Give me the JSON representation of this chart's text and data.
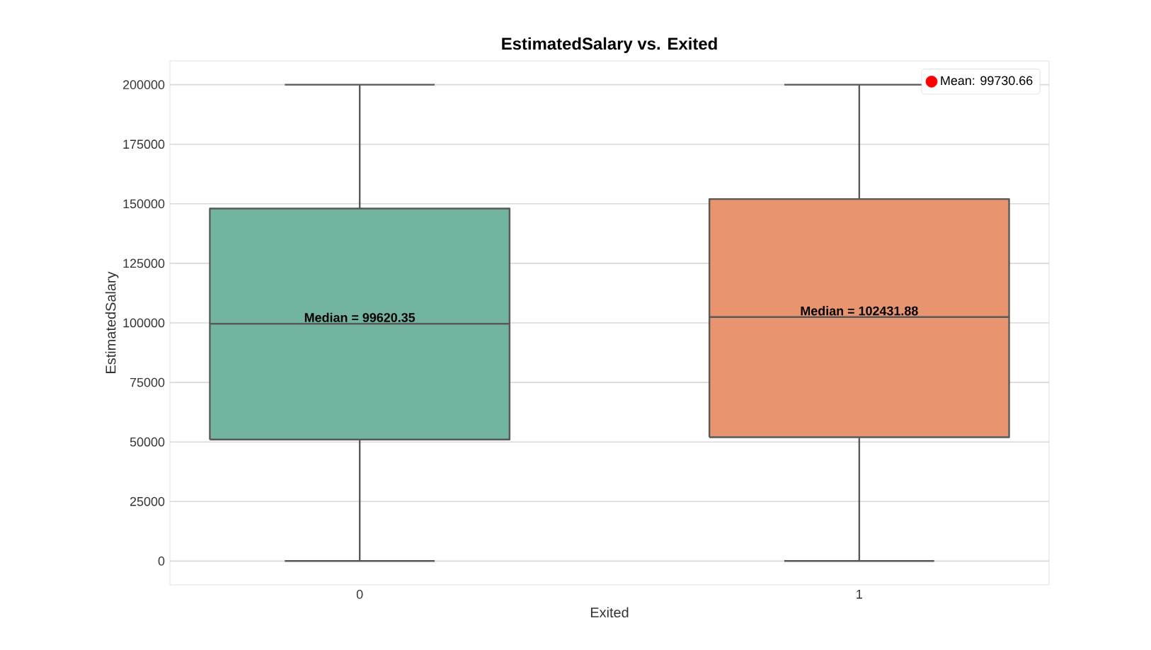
{
  "chart_data": {
    "type": "box",
    "title": "EstimatedSalary vs. Exited",
    "xlabel": "Exited",
    "ylabel": "EstimatedSalary",
    "categories": [
      "0",
      "1"
    ],
    "colors": [
      "#73b4a0",
      "#e8956f"
    ],
    "boxes": [
      {
        "low": 12,
        "q1": 51000,
        "median": 99620.35,
        "q3": 148000,
        "high": 200000
      },
      {
        "low": 12,
        "q1": 52000,
        "median": 102431.88,
        "q3": 152000,
        "high": 200000
      }
    ],
    "series": [
      {
        "name": "Mean: 99730.66",
        "type": "scatter",
        "color": "#ff0000",
        "x": [
          "0",
          "1"
        ],
        "values": [
          null,
          null
        ]
      }
    ],
    "ylim": [
      -10000,
      210000
    ],
    "yticks": [
      0,
      25000,
      50000,
      75000,
      100000,
      125000,
      150000,
      175000,
      200000
    ],
    "grid": "y",
    "legend": "top right",
    "annotations": [
      {
        "text": "Median = 99620.35",
        "x": "0",
        "y": 99620.35
      },
      {
        "text": "Median = 102431.88",
        "x": "1",
        "y": 102431.88
      }
    ]
  }
}
